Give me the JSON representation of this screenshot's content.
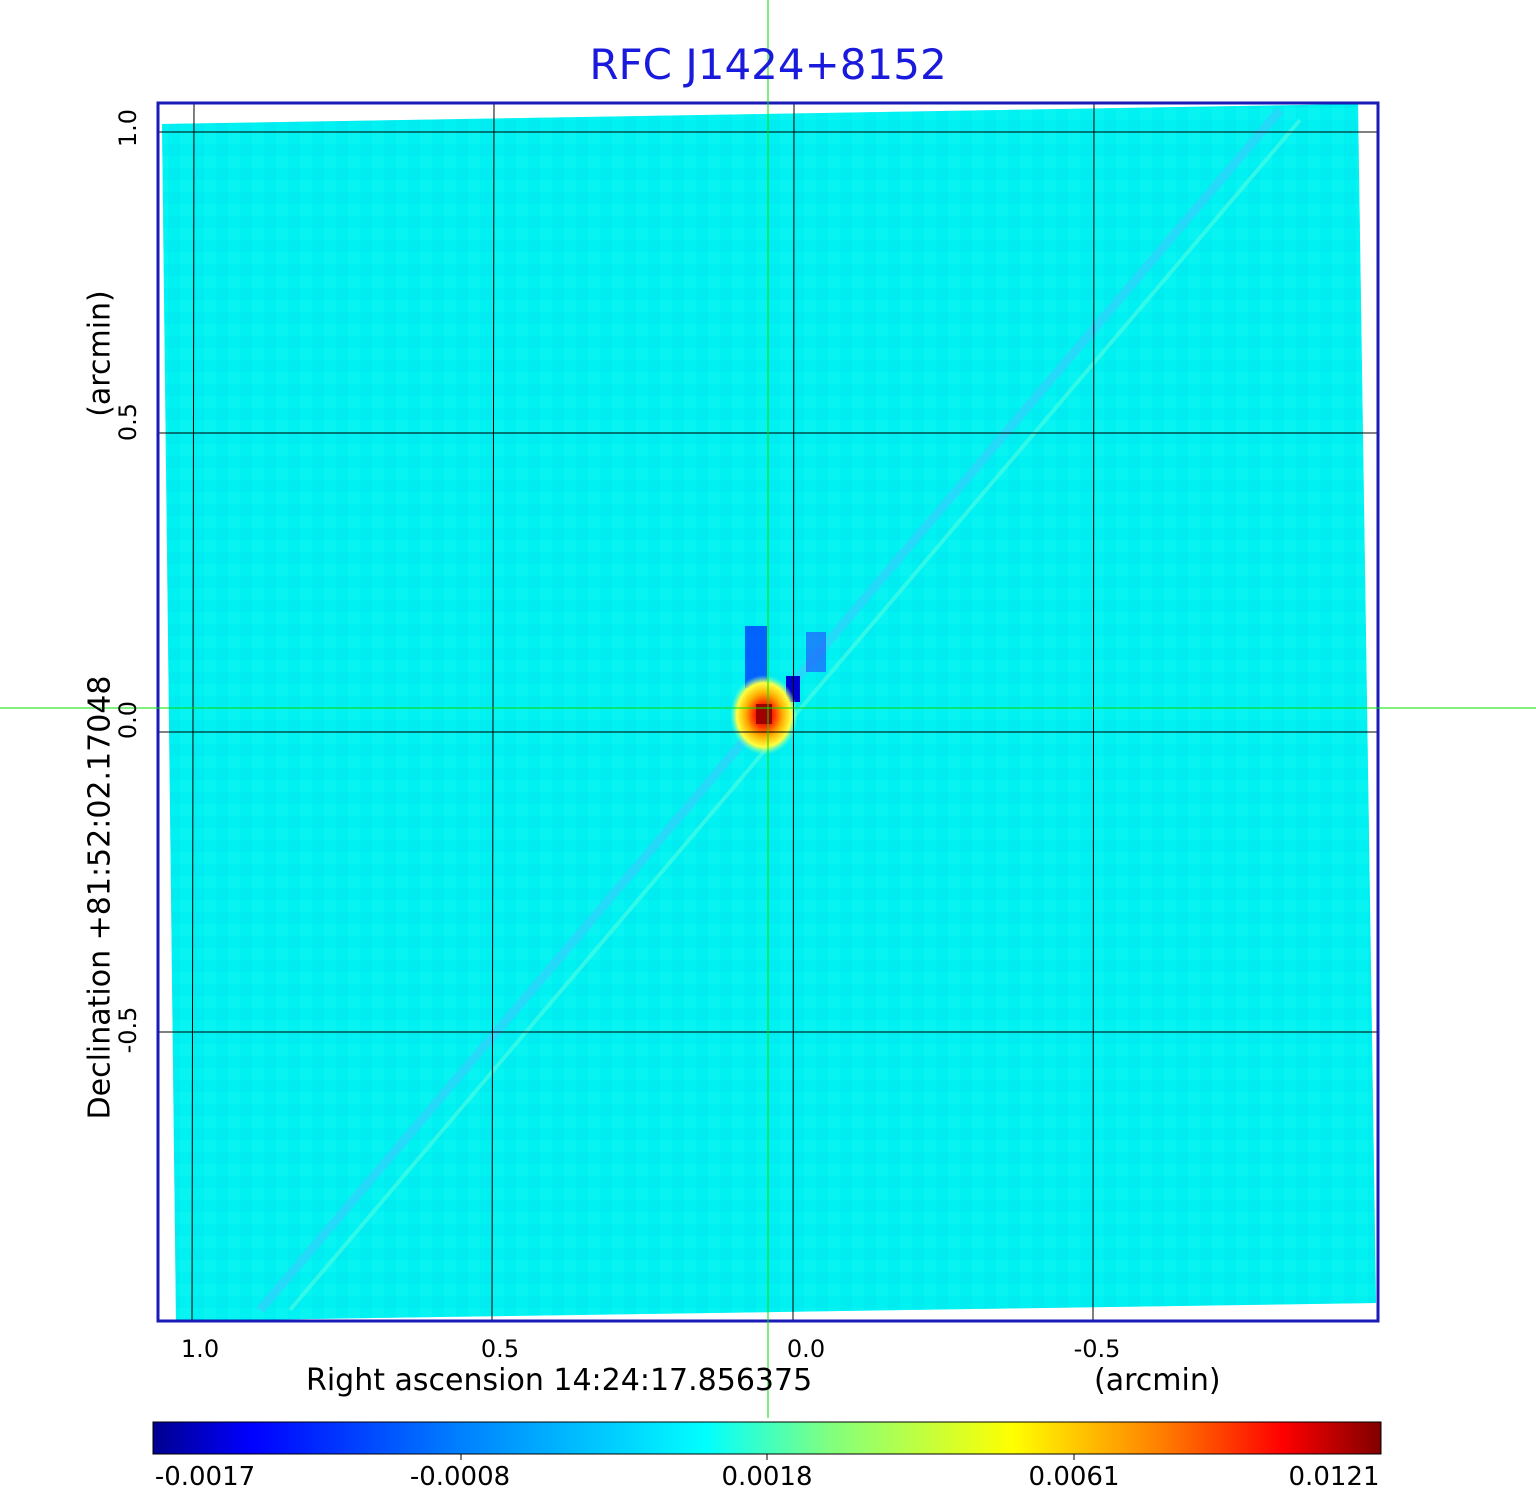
{
  "figure": {
    "title": "RFC J1424+8152",
    "x_axis": {
      "label": "Right ascension  14:24:17.856375",
      "unit_label": "(arcmin)",
      "ticks": [
        "1.0",
        "0.5",
        "0.0",
        "-0.5"
      ]
    },
    "y_axis": {
      "label": "Declination  +81:52:02.17048",
      "unit_label": "(arcmin)",
      "ticks": [
        "1.0",
        "0.5",
        "0.0",
        "-0.5"
      ]
    },
    "colorbar": {
      "ticks": [
        "-0.0017",
        "-0.0008",
        "0.0018",
        "0.0061",
        "0.0121"
      ],
      "colormap": [
        "#00008f",
        "#0000ff",
        "#0080ff",
        "#00ffff",
        "#80ff80",
        "#ffff00",
        "#ff8000",
        "#ff0000",
        "#800000"
      ]
    },
    "colors": {
      "title": "#1a1adc",
      "frame": "#1a1ab4",
      "crosshair": "#00e000",
      "background_map": "#00f0f0"
    }
  }
}
